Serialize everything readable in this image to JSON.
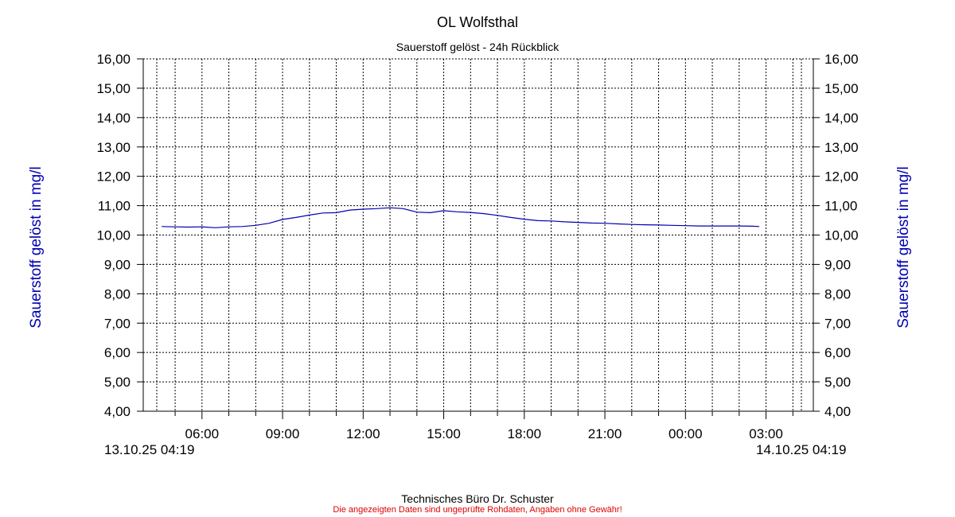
{
  "chart_data": {
    "type": "line",
    "title": "OL Wolfsthal",
    "subtitle": "Sauerstoff gelöst - 24h Rückblick",
    "ylabel": "Sauerstoff gelöst in mg/l",
    "ylabel_right": "Sauerstoff gelöst in mg/l",
    "ylim": [
      4.0,
      16.0
    ],
    "yticks": [
      "4,00",
      "5,00",
      "6,00",
      "7,00",
      "8,00",
      "9,00",
      "10,00",
      "11,00",
      "12,00",
      "13,00",
      "14,00",
      "15,00",
      "16,00"
    ],
    "xticks": [
      "06:00",
      "09:00",
      "12:00",
      "15:00",
      "18:00",
      "21:00",
      "00:00",
      "03:00"
    ],
    "start_label": "13.10.25 04:19",
    "end_label": "14.10.25 04:19",
    "grid": true,
    "line_color": "#0000b4",
    "series": [
      {
        "x": [
          "04:30",
          "05:00",
          "05:30",
          "06:00",
          "06:30",
          "07:00",
          "07:30",
          "08:00",
          "08:30",
          "09:00",
          "09:30",
          "10:00",
          "10:30",
          "11:00",
          "11:30",
          "12:00",
          "12:30",
          "13:00",
          "13:30",
          "14:00",
          "14:30",
          "15:00",
          "15:30",
          "16:00",
          "16:30",
          "17:00",
          "17:30",
          "18:00",
          "18:30",
          "19:00",
          "19:30",
          "20:00",
          "20:30",
          "21:00",
          "21:30",
          "22:00",
          "22:30",
          "23:00",
          "23:30",
          "00:00",
          "00:30",
          "01:00",
          "01:30",
          "02:00",
          "02:30",
          "02:45"
        ],
        "values": [
          10.29,
          10.28,
          10.27,
          10.28,
          10.25,
          10.28,
          10.29,
          10.33,
          10.4,
          10.53,
          10.6,
          10.68,
          10.75,
          10.76,
          10.85,
          10.88,
          10.9,
          10.93,
          10.9,
          10.78,
          10.76,
          10.83,
          10.79,
          10.77,
          10.73,
          10.67,
          10.6,
          10.54,
          10.49,
          10.48,
          10.45,
          10.43,
          10.41,
          10.4,
          10.38,
          10.36,
          10.35,
          10.34,
          10.33,
          10.32,
          10.31,
          10.31,
          10.31,
          10.31,
          10.3,
          10.29
        ]
      }
    ]
  },
  "footer": {
    "credit": "Technisches Büro Dr. Schuster",
    "disclaimer": "Die angezeigten Daten sind ungeprüfte Rohdaten, Angaben ohne Gewähr!"
  }
}
